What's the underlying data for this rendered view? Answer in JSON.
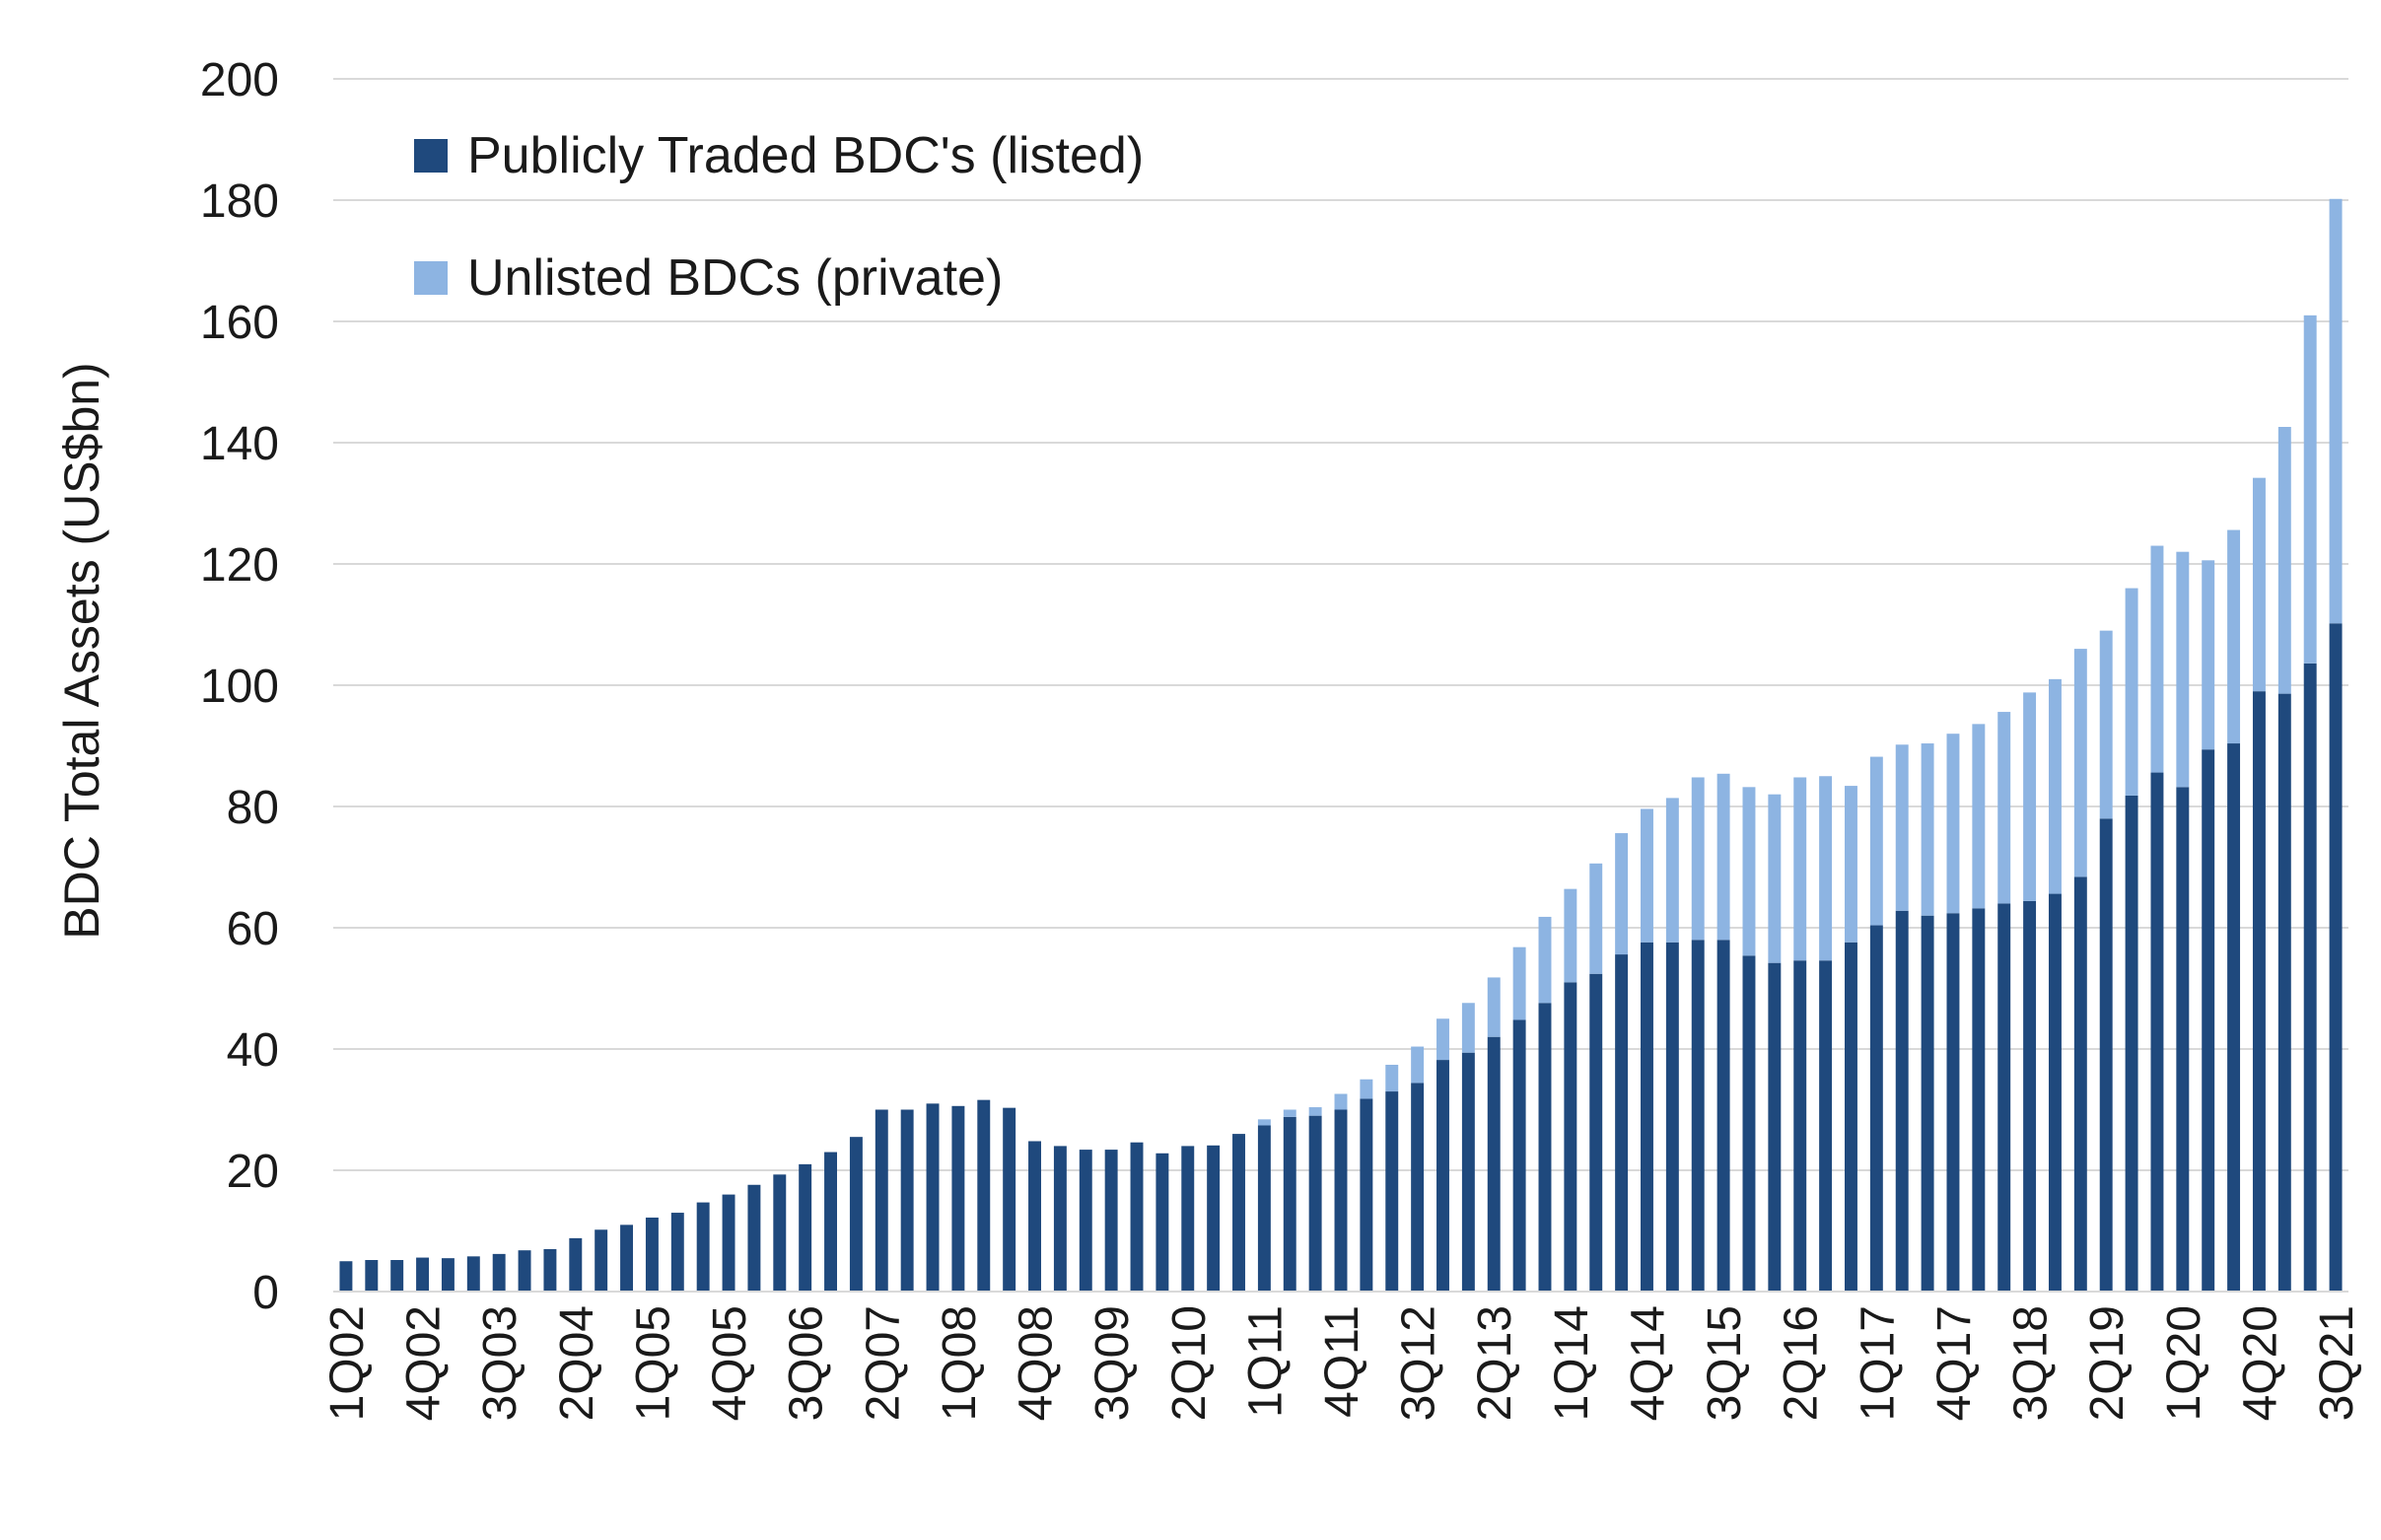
{
  "chart_data": {
    "type": "bar",
    "stacked": true,
    "ylabel": "BDC Total Assets (US$bn)",
    "xlabel": "",
    "title": "",
    "ylim": [
      0,
      200
    ],
    "yticks": [
      0,
      20,
      40,
      60,
      80,
      100,
      120,
      140,
      160,
      180,
      200
    ],
    "grid": "horizontal",
    "legend_position": "top-left",
    "colors": {
      "listed": "#1f497d",
      "unlisted": "#8db4e2"
    },
    "categories": [
      "1Q02",
      "2Q02",
      "3Q02",
      "4Q02",
      "1Q03",
      "2Q03",
      "3Q03",
      "4Q03",
      "1Q04",
      "2Q04",
      "3Q04",
      "4Q04",
      "1Q05",
      "2Q05",
      "3Q05",
      "4Q05",
      "1Q06",
      "2Q06",
      "3Q06",
      "4Q06",
      "1Q07",
      "2Q07",
      "3Q07",
      "4Q07",
      "1Q08",
      "2Q08",
      "3Q08",
      "4Q08",
      "1Q09",
      "2Q09",
      "3Q09",
      "4Q09",
      "1Q10",
      "2Q10",
      "3Q10",
      "4Q10",
      "1Q11",
      "2Q11",
      "3Q11",
      "4Q11",
      "1Q12",
      "2Q12",
      "3Q12",
      "4Q12",
      "1Q13",
      "2Q13",
      "3Q13",
      "4Q13",
      "1Q14",
      "2Q14",
      "3Q14",
      "4Q14",
      "1Q15",
      "2Q15",
      "3Q15",
      "4Q15",
      "1Q16",
      "2Q16",
      "3Q16",
      "4Q16",
      "1Q17",
      "2Q17",
      "3Q17",
      "4Q17",
      "1Q18",
      "2Q18",
      "3Q18",
      "4Q18",
      "1Q19",
      "2Q19",
      "3Q19",
      "4Q19",
      "1Q20",
      "2Q20",
      "3Q20",
      "4Q20",
      "1Q21",
      "2Q21",
      "3Q21"
    ],
    "tick_labels": [
      "1Q02",
      "4Q02",
      "3Q03",
      "2Q04",
      "1Q05",
      "4Q05",
      "3Q06",
      "2Q07",
      "1Q08",
      "4Q08",
      "3Q09",
      "2Q10",
      "1Q11",
      "4Q11",
      "3Q12",
      "2Q13",
      "1Q14",
      "4Q14",
      "3Q15",
      "2Q16",
      "1Q17",
      "4Q17",
      "3Q18",
      "2Q19",
      "1Q20",
      "4Q20",
      "3Q21"
    ],
    "series": [
      {
        "name": "Publicly Traded BDC's (listed)",
        "values": [
          5,
          5.2,
          5.2,
          5.6,
          5.5,
          5.8,
          6.2,
          6.8,
          7,
          8.8,
          10.2,
          11,
          12.2,
          13,
          14.7,
          16,
          17.6,
          19.3,
          21,
          23,
          25.5,
          30,
          30,
          31,
          30.6,
          31.6,
          30.3,
          24.8,
          24,
          23.4,
          23.4,
          24.6,
          22.8,
          24,
          24.1,
          26,
          27.4,
          28.8,
          29,
          30,
          31.8,
          33,
          34.4,
          38.2,
          39.4,
          42,
          44.8,
          47.6,
          51,
          52.4,
          55.6,
          57.6,
          57.6,
          58,
          58,
          55.4,
          54.2,
          54.6,
          54.6,
          57.6,
          60.4,
          62.8,
          62,
          62.4,
          63.2,
          64,
          64.4,
          65.6,
          68.4,
          78,
          81.8,
          85.6,
          83.2,
          89.4,
          90.4,
          99,
          98.6,
          103.6,
          110.2
        ]
      },
      {
        "name": "Unlisted BDCs (private)",
        "values": [
          0,
          0,
          0,
          0,
          0,
          0,
          0,
          0,
          0,
          0,
          0,
          0,
          0,
          0,
          0,
          0,
          0,
          0,
          0,
          0,
          0,
          0,
          0,
          0,
          0,
          0,
          0,
          0,
          0,
          0,
          0,
          0,
          0,
          0,
          0,
          0,
          1,
          1.2,
          1.4,
          2.6,
          3.2,
          4.4,
          6,
          6.8,
          8.2,
          9.8,
          12,
          14.2,
          15.4,
          18.2,
          20,
          22,
          23.8,
          26.8,
          27.4,
          27.8,
          27.8,
          30.2,
          30.4,
          25.8,
          27.8,
          27.4,
          28.4,
          29.6,
          30.4,
          31.6,
          34.4,
          35.4,
          37.6,
          31,
          34.2,
          37.4,
          38.8,
          31.2,
          35.2,
          35.2,
          44,
          57.4,
          70
        ]
      }
    ]
  }
}
